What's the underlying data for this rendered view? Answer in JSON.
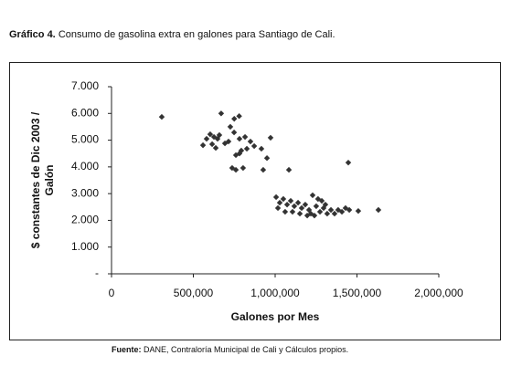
{
  "chart_data": {
    "type": "scatter",
    "title_label": "Gráfico 4.",
    "title": "Consumo de gasolina extra en galones para Santiago de Cali.",
    "source_label": "Fuente:",
    "source": "DANE, Contraloría Municipal de Cali y Cálculos propios.",
    "xlabel": "Galones por Mes",
    "ylabel": [
      "$ constantes de Dic 2003 /",
      "Galón"
    ],
    "color": "#333333",
    "xlim": [
      0,
      2000000
    ],
    "ylim": [
      0,
      7000
    ],
    "xticks": [
      0,
      {
        "value": 500000,
        "label": "500,000"
      },
      {
        "value": 1000000,
        "label": "1,000,000"
      },
      {
        "value": 1500000,
        "label": "1,500,000"
      },
      {
        "value": 2000000,
        "label": "2,000,000"
      }
    ],
    "yticks": [
      {
        "value": 0,
        "label": "-"
      },
      {
        "value": 1000,
        "label": "1.000"
      },
      {
        "value": 2000,
        "label": "2.000"
      },
      {
        "value": 3000,
        "label": "3.000"
      },
      {
        "value": 4000,
        "label": "4.000"
      },
      {
        "value": 5000,
        "label": "5.000"
      },
      {
        "value": 6000,
        "label": "6.000"
      },
      {
        "value": 7000,
        "label": "7.000"
      }
    ],
    "grid": false,
    "x": [
      307000,
      670000,
      750000,
      780000,
      726000,
      603000,
      626000,
      648000,
      581000,
      559000,
      615000,
      637000,
      693000,
      715000,
      659000,
      749000,
      782000,
      816000,
      849000,
      872000,
      827000,
      793000,
      760000,
      782000,
      737000,
      760000,
      804000,
      916000,
      950000,
      927000,
      972000,
      1084000,
      1447000,
      1006000,
      1028000,
      1050000,
      1073000,
      1095000,
      1117000,
      1140000,
      1162000,
      1184000,
      1207000,
      1229000,
      1251000,
      1274000,
      1296000,
      1318000,
      1218000,
      1196000,
      1240000,
      1341000,
      1363000,
      1385000,
      1408000,
      1430000,
      1453000,
      1508000,
      1631000,
      1017000,
      1061000,
      1106000,
      1151000,
      1285000,
      1307000,
      1262000
    ],
    "values": [
      5870,
      6000,
      5800,
      5900,
      5500,
      5220,
      5120,
      5050,
      5050,
      4810,
      4850,
      4710,
      4880,
      4950,
      5190,
      5290,
      5050,
      5120,
      4950,
      4780,
      4680,
      4610,
      4440,
      4500,
      3960,
      3890,
      3960,
      4680,
      4330,
      3890,
      5090,
      3890,
      4160,
      2870,
      2660,
      2800,
      2590,
      2730,
      2530,
      2660,
      2460,
      2590,
      2390,
      2940,
      2530,
      2320,
      2460,
      2250,
      2250,
      2180,
      2180,
      2390,
      2250,
      2390,
      2320,
      2460,
      2390,
      2350,
      2390,
      2460,
      2320,
      2320,
      2250,
      2730,
      2590,
      2800
    ]
  }
}
